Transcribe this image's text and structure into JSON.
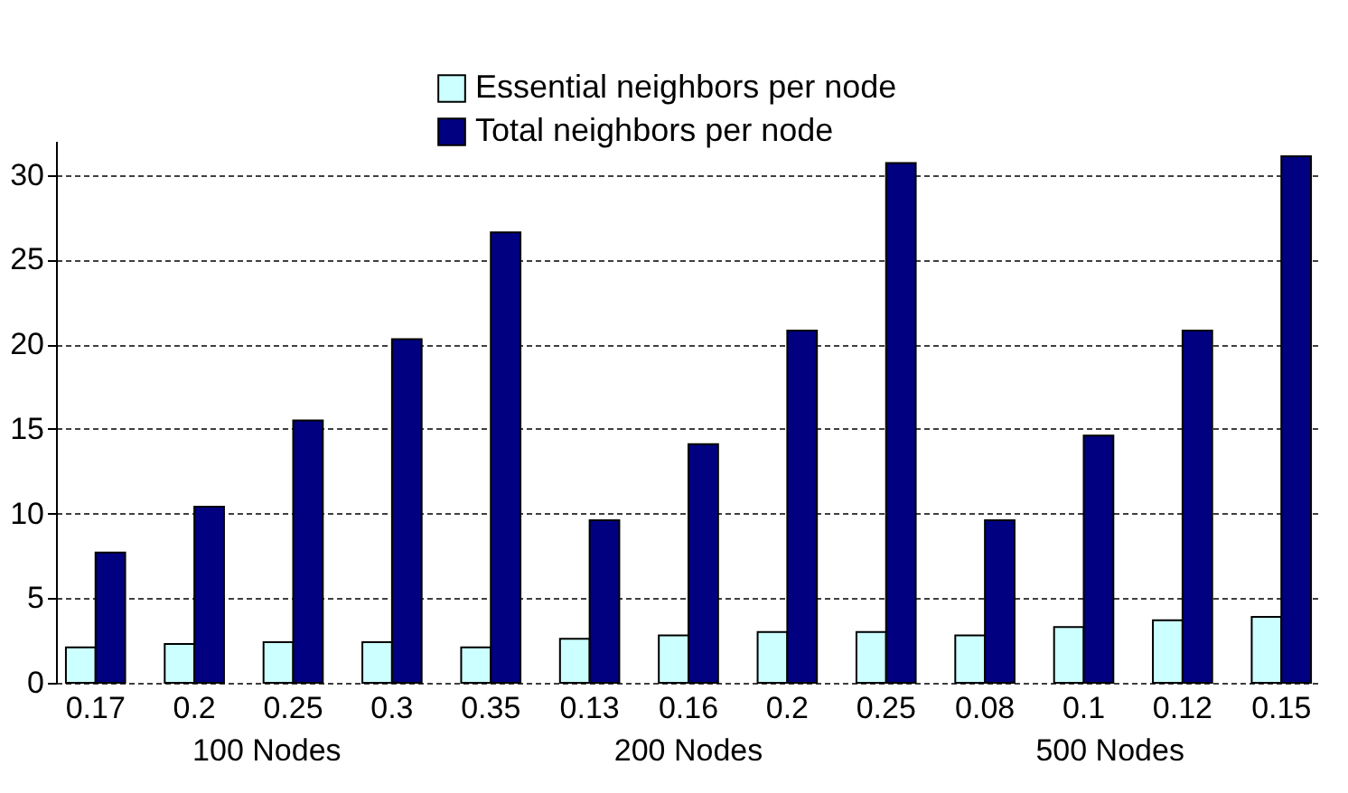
{
  "chart_data": {
    "type": "bar",
    "categories": [
      "0.17",
      "0.2",
      "0.25",
      "0.3",
      "0.35",
      "0.13",
      "0.16",
      "0.2",
      "0.25",
      "0.08",
      "0.1",
      "0.12",
      "0.15"
    ],
    "series": [
      {
        "name": "Essential neighbors per node",
        "color": "#ccffff",
        "values": [
          2.1,
          2.3,
          2.4,
          2.4,
          2.1,
          2.6,
          2.8,
          3.0,
          3.0,
          2.8,
          3.3,
          3.7,
          3.9
        ]
      },
      {
        "name": "Total neighbors per node",
        "color": "#000080",
        "values": [
          7.7,
          10.4,
          15.5,
          20.3,
          26.6,
          9.6,
          14.1,
          20.8,
          30.7,
          9.6,
          14.6,
          20.8,
          31.1
        ]
      }
    ],
    "ylim": [
      0,
      32
    ],
    "yticks": [
      0,
      5,
      10,
      15,
      20,
      25,
      30
    ],
    "grid": "y",
    "legend": "top left",
    "annotations": [
      "100 Nodes",
      "200 Nodes",
      "500 Nodes"
    ]
  }
}
